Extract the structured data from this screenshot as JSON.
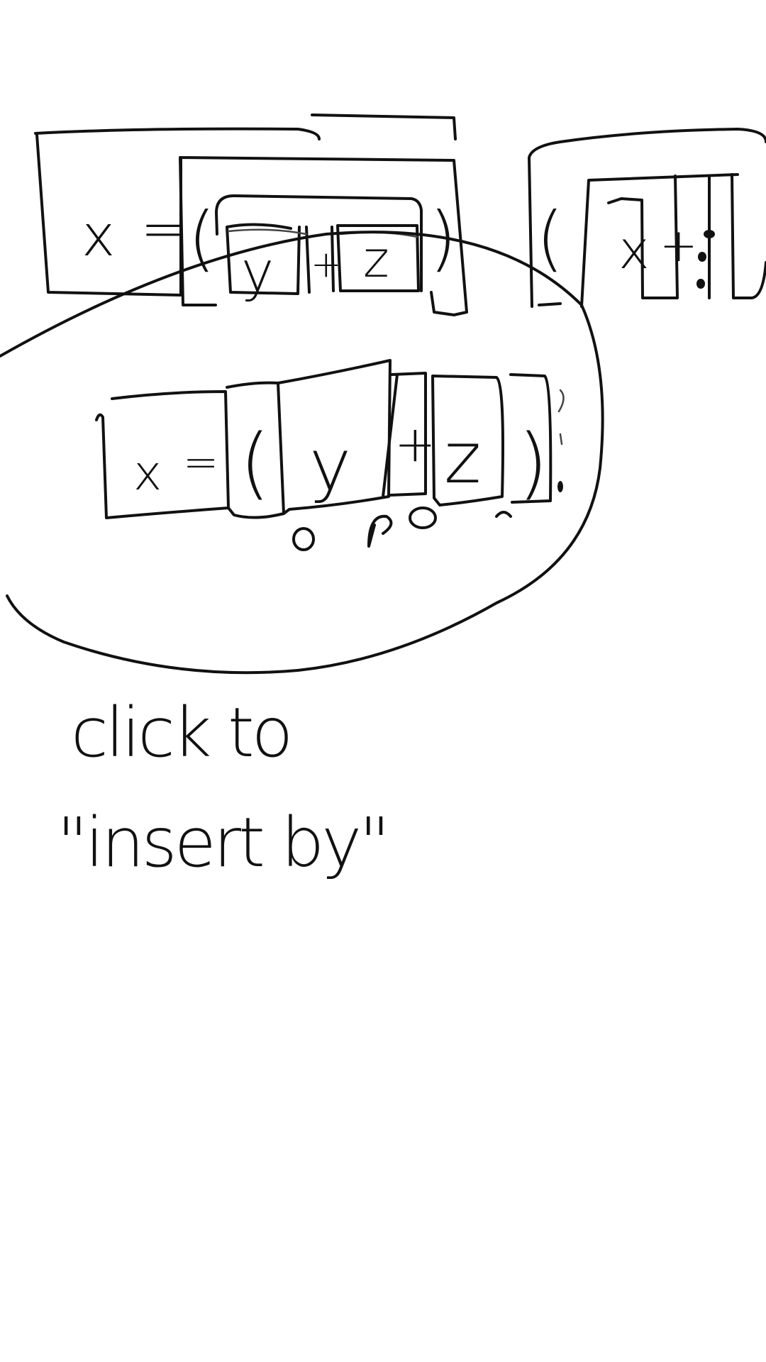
{
  "expression_top": {
    "variable": "x",
    "equals": "=",
    "open_paren": "(",
    "left_operand": "y",
    "operator": "+",
    "right_operand": "z",
    "close_paren": ")"
  },
  "expression_right_partial": {
    "open_paren": "(",
    "left_operand": "x",
    "operator": "+"
  },
  "expression_zoomed": {
    "variable": "x",
    "equals": "=",
    "open_paren": "(",
    "left_operand": "y",
    "operator": "+",
    "right_operand": "z",
    "close_paren": ")"
  },
  "caption": {
    "line1": "click to",
    "line2": "\"insert by\""
  }
}
